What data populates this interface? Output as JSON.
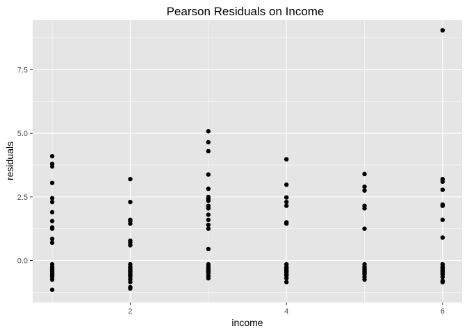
{
  "chart_data": {
    "type": "scatter",
    "title": "Pearson Residuals on Income",
    "xlabel": "income",
    "ylabel": "residuals",
    "xlim": [
      0.75,
      6.25
    ],
    "ylim": [
      -1.65,
      9.45
    ],
    "x_ticks": [
      2,
      4,
      6
    ],
    "x_tick_labels": [
      "2",
      "4",
      "6"
    ],
    "y_ticks": [
      0,
      2.5,
      5,
      7.5
    ],
    "y_tick_labels": [
      "0.0",
      "2.5",
      "5.0",
      "7.5"
    ],
    "grid": true,
    "legend": "none",
    "colors": {
      "panel": "#e5e5e5",
      "grid_major": "#ffffff",
      "point": "#000000",
      "tick_label": "#4d4d4d"
    },
    "points": [
      [
        1,
        4.1
      ],
      [
        1,
        3.8
      ],
      [
        1,
        3.7
      ],
      [
        1,
        3.05
      ],
      [
        1,
        2.45
      ],
      [
        1,
        2.3
      ],
      [
        1,
        1.9
      ],
      [
        1,
        1.55
      ],
      [
        1,
        1.3
      ],
      [
        1,
        1.25
      ],
      [
        1,
        0.85
      ],
      [
        1,
        0.7
      ],
      [
        1,
        -0.15
      ],
      [
        1,
        -0.25
      ],
      [
        1,
        -0.3
      ],
      [
        1,
        -0.35
      ],
      [
        1,
        -0.4
      ],
      [
        1,
        -0.45
      ],
      [
        1,
        -0.5
      ],
      [
        1,
        -0.55
      ],
      [
        1,
        -0.6
      ],
      [
        1,
        -0.65
      ],
      [
        1,
        -0.75
      ],
      [
        1,
        -1.15
      ],
      [
        2,
        3.2
      ],
      [
        2,
        2.3
      ],
      [
        2,
        1.6
      ],
      [
        2,
        1.55
      ],
      [
        2,
        1.45
      ],
      [
        2,
        0.78
      ],
      [
        2,
        0.7
      ],
      [
        2,
        0.6
      ],
      [
        2,
        -0.15
      ],
      [
        2,
        -0.25
      ],
      [
        2,
        -0.3
      ],
      [
        2,
        -0.35
      ],
      [
        2,
        -0.4
      ],
      [
        2,
        -0.45
      ],
      [
        2,
        -0.5
      ],
      [
        2,
        -0.55
      ],
      [
        2,
        -0.6
      ],
      [
        2,
        -0.65
      ],
      [
        2,
        -0.75
      ],
      [
        2,
        -0.85
      ],
      [
        2,
        -1.05
      ],
      [
        2,
        -1.1
      ],
      [
        3,
        5.08
      ],
      [
        3,
        4.65
      ],
      [
        3,
        4.3
      ],
      [
        3,
        3.38
      ],
      [
        3,
        2.82
      ],
      [
        3,
        2.5
      ],
      [
        3,
        2.42
      ],
      [
        3,
        2.35
      ],
      [
        3,
        2.15
      ],
      [
        3,
        2.05
      ],
      [
        3,
        1.8
      ],
      [
        3,
        1.6
      ],
      [
        3,
        1.4
      ],
      [
        3,
        1.25
      ],
      [
        3,
        0.45
      ],
      [
        3,
        -0.15
      ],
      [
        3,
        -0.25
      ],
      [
        3,
        -0.3
      ],
      [
        3,
        -0.35
      ],
      [
        3,
        -0.4
      ],
      [
        3,
        -0.45
      ],
      [
        3,
        -0.5
      ],
      [
        3,
        -0.6
      ],
      [
        3,
        -0.7
      ],
      [
        4,
        3.98
      ],
      [
        4,
        2.98
      ],
      [
        4,
        2.48
      ],
      [
        4,
        2.3
      ],
      [
        4,
        2.15
      ],
      [
        4,
        1.5
      ],
      [
        4,
        1.45
      ],
      [
        4,
        -0.15
      ],
      [
        4,
        -0.25
      ],
      [
        4,
        -0.3
      ],
      [
        4,
        -0.35
      ],
      [
        4,
        -0.4
      ],
      [
        4,
        -0.45
      ],
      [
        4,
        -0.5
      ],
      [
        4,
        -0.55
      ],
      [
        4,
        -0.6
      ],
      [
        4,
        -0.7
      ],
      [
        4,
        -0.85
      ],
      [
        5,
        3.4
      ],
      [
        5,
        2.9
      ],
      [
        5,
        2.75
      ],
      [
        5,
        2.15
      ],
      [
        5,
        2.05
      ],
      [
        5,
        1.25
      ],
      [
        5,
        -0.15
      ],
      [
        5,
        -0.25
      ],
      [
        5,
        -0.3
      ],
      [
        5,
        -0.35
      ],
      [
        5,
        -0.4
      ],
      [
        5,
        -0.45
      ],
      [
        5,
        -0.5
      ],
      [
        5,
        -0.55
      ],
      [
        5,
        -0.65
      ],
      [
        5,
        -0.75
      ],
      [
        6,
        9.05
      ],
      [
        6,
        3.2
      ],
      [
        6,
        3.1
      ],
      [
        6,
        2.78
      ],
      [
        6,
        2.2
      ],
      [
        6,
        2.15
      ],
      [
        6,
        1.6
      ],
      [
        6,
        0.9
      ],
      [
        6,
        -0.15
      ],
      [
        6,
        -0.25
      ],
      [
        6,
        -0.3
      ],
      [
        6,
        -0.35
      ],
      [
        6,
        -0.4
      ],
      [
        6,
        -0.45
      ],
      [
        6,
        -0.5
      ],
      [
        6,
        -0.55
      ],
      [
        6,
        -0.65
      ],
      [
        6,
        -0.8
      ],
      [
        6,
        -0.85
      ]
    ]
  }
}
